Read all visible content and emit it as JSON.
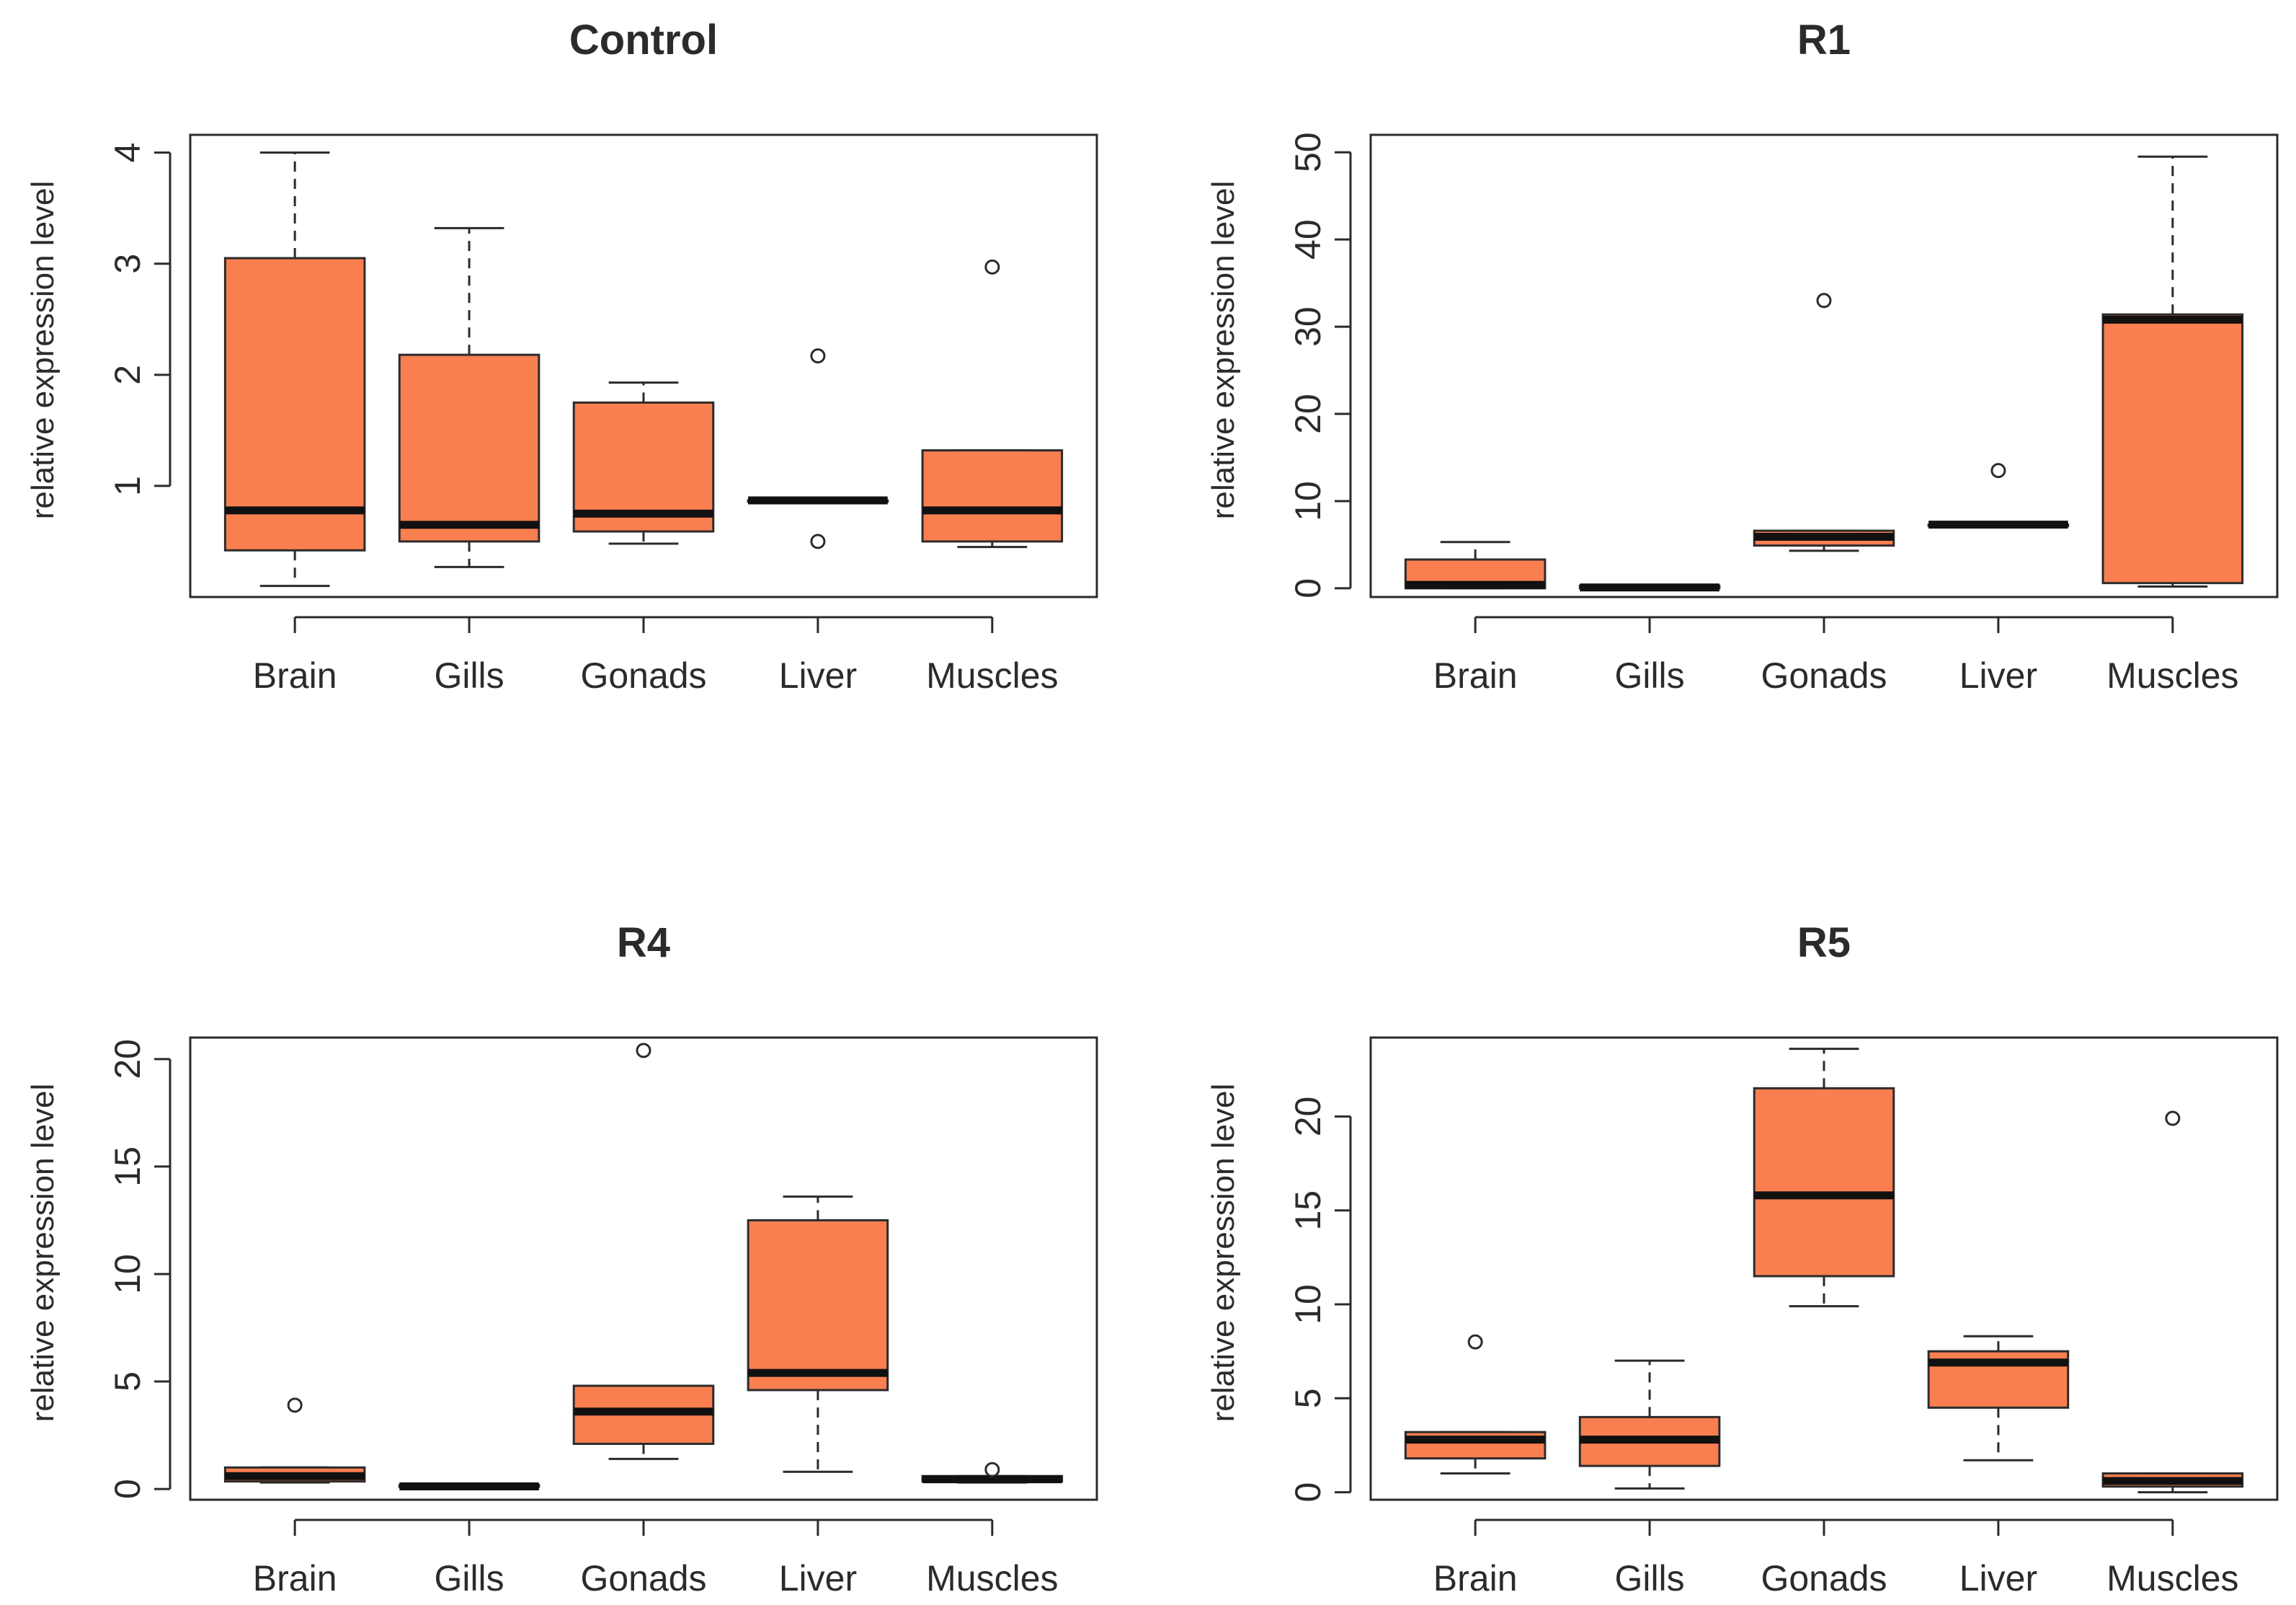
{
  "chart_data": [
    {
      "type": "boxplot",
      "title": "Control",
      "ylabel": "relative expression level",
      "xlabel": "",
      "categories": [
        "Brain",
        "Gills",
        "Gonads",
        "Liver",
        "Muscles"
      ],
      "ylim": [
        0.0,
        4.16
      ],
      "yticks": [
        1,
        2,
        3,
        4
      ],
      "ytick_labels": [
        "1",
        "2",
        "3",
        "4"
      ],
      "boxes": [
        {
          "min": 0.1,
          "q1": 0.42,
          "median": 0.78,
          "q3": 3.05,
          "max": 4.0,
          "outliers": []
        },
        {
          "min": 0.27,
          "q1": 0.5,
          "median": 0.65,
          "q3": 2.18,
          "max": 3.32,
          "outliers": []
        },
        {
          "min": 0.48,
          "q1": 0.59,
          "median": 0.75,
          "q3": 1.75,
          "max": 1.93,
          "outliers": []
        },
        {
          "min": 0.87,
          "q1": 0.87,
          "median": 0.87,
          "q3": 0.87,
          "max": 0.87,
          "outliers": [
            2.17,
            0.5
          ]
        },
        {
          "min": 0.45,
          "q1": 0.5,
          "median": 0.78,
          "q3": 1.32,
          "max": 1.32,
          "outliers": [
            2.97
          ]
        }
      ],
      "box_color": "#fa7f50"
    },
    {
      "type": "boxplot",
      "title": "R1",
      "ylabel": "relative expression level",
      "xlabel": "",
      "categories": [
        "Brain",
        "Gills",
        "Gonads",
        "Liver",
        "Muscles"
      ],
      "ylim": [
        -1.0,
        52.0
      ],
      "yticks": [
        0,
        10,
        20,
        30,
        40,
        50
      ],
      "ytick_labels": [
        "0",
        "10",
        "20",
        "30",
        "40",
        "50"
      ],
      "boxes": [
        {
          "min": 0.0,
          "q1": 0.0,
          "median": 0.4,
          "q3": 3.3,
          "max": 5.3,
          "outliers": []
        },
        {
          "min": 0.0,
          "q1": 0.0,
          "median": 0.1,
          "q3": 0.3,
          "max": 0.3,
          "outliers": []
        },
        {
          "min": 4.3,
          "q1": 4.9,
          "median": 5.9,
          "q3": 6.6,
          "max": 6.6,
          "outliers": [
            33.0
          ]
        },
        {
          "min": 7.2,
          "q1": 7.2,
          "median": 7.3,
          "q3": 7.3,
          "max": 7.3,
          "outliers": [
            13.5
          ]
        },
        {
          "min": 0.2,
          "q1": 0.6,
          "median": 30.8,
          "q3": 31.4,
          "max": 49.5,
          "outliers": []
        }
      ],
      "box_color": "#fa7f50"
    },
    {
      "type": "boxplot",
      "title": "R4",
      "ylabel": "relative expression level",
      "xlabel": "",
      "categories": [
        "Brain",
        "Gills",
        "Gonads",
        "Liver",
        "Muscles"
      ],
      "ylim": [
        -0.5,
        21.0
      ],
      "yticks": [
        0,
        5,
        10,
        15,
        20
      ],
      "ytick_labels": [
        "0",
        "5",
        "10",
        "15",
        "20"
      ],
      "boxes": [
        {
          "min": 0.3,
          "q1": 0.35,
          "median": 0.6,
          "q3": 1.0,
          "max": 1.0,
          "outliers": [
            3.9
          ]
        },
        {
          "min": 0.05,
          "q1": 0.1,
          "median": 0.12,
          "q3": 0.18,
          "max": 0.18,
          "outliers": []
        },
        {
          "min": 1.4,
          "q1": 2.1,
          "median": 3.6,
          "q3": 4.8,
          "max": 4.8,
          "outliers": [
            20.4
          ]
        },
        {
          "min": 0.8,
          "q1": 4.6,
          "median": 5.4,
          "q3": 12.5,
          "max": 13.6,
          "outliers": []
        },
        {
          "min": 0.3,
          "q1": 0.35,
          "median": 0.45,
          "q3": 0.6,
          "max": 0.6,
          "outliers": [
            0.9
          ]
        }
      ],
      "box_color": "#fa7f50"
    },
    {
      "type": "boxplot",
      "title": "R5",
      "ylabel": "relative expression level",
      "xlabel": "",
      "categories": [
        "Brain",
        "Gills",
        "Gonads",
        "Liver",
        "Muscles"
      ],
      "ylim": [
        -0.4,
        24.2
      ],
      "yticks": [
        0,
        5,
        10,
        15,
        20
      ],
      "ytick_labels": [
        "0",
        "5",
        "10",
        "15",
        "20"
      ],
      "boxes": [
        {
          "min": 1.0,
          "q1": 1.8,
          "median": 2.8,
          "q3": 3.2,
          "max": 3.2,
          "outliers": [
            8.0
          ]
        },
        {
          "min": 0.2,
          "q1": 1.4,
          "median": 2.8,
          "q3": 4.0,
          "max": 7.0,
          "outliers": []
        },
        {
          "min": 9.9,
          "q1": 11.5,
          "median": 15.8,
          "q3": 21.5,
          "max": 23.6,
          "outliers": []
        },
        {
          "min": 1.7,
          "q1": 4.5,
          "median": 6.9,
          "q3": 7.5,
          "max": 8.3,
          "outliers": []
        },
        {
          "min": 0.0,
          "q1": 0.3,
          "median": 0.6,
          "q3": 1.0,
          "max": 1.0,
          "outliers": [
            19.9
          ]
        }
      ],
      "box_color": "#fa7f50"
    }
  ]
}
